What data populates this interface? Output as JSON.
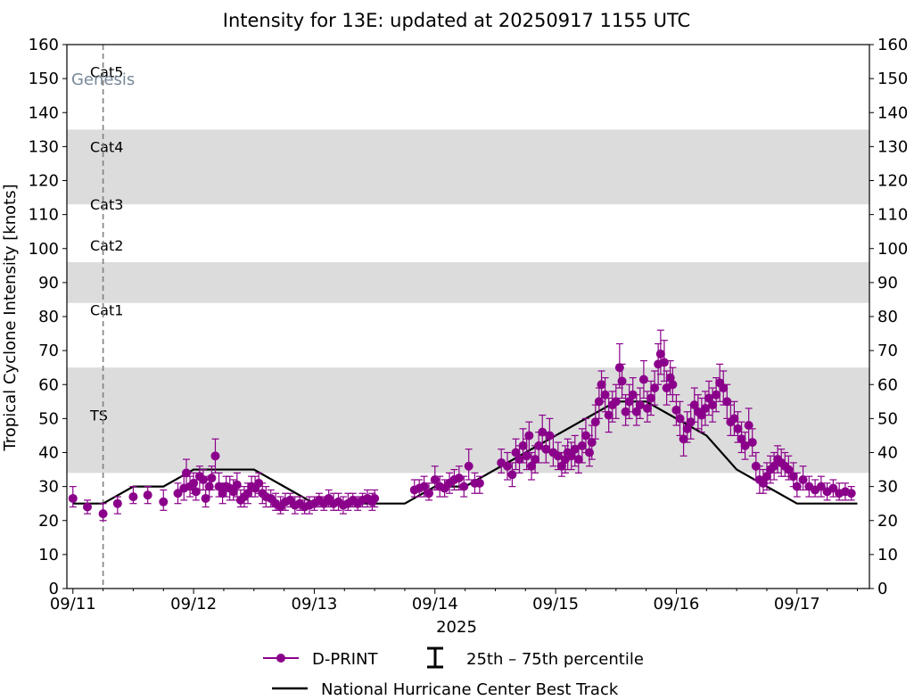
{
  "chart_data": {
    "type": "scatter",
    "title": "Intensity for 13E: updated at 20250917 1155 UTC",
    "xlabel": "2025",
    "ylabel": "Tropical Cyclone Intensity [knots]",
    "ylim": [
      0,
      160
    ],
    "xlim_days": [
      -0.05,
      6.6
    ],
    "x_unit": "days since 09/11 00 UTC",
    "x_ticks": [
      {
        "label": "09/11",
        "day": 0
      },
      {
        "label": "09/12",
        "day": 1
      },
      {
        "label": "09/13",
        "day": 2
      },
      {
        "label": "09/14",
        "day": 3
      },
      {
        "label": "09/15",
        "day": 4
      },
      {
        "label": "09/16",
        "day": 5
      },
      {
        "label": "09/17",
        "day": 6
      }
    ],
    "y_ticks": [
      0,
      10,
      20,
      30,
      40,
      50,
      60,
      70,
      80,
      90,
      100,
      110,
      120,
      130,
      140,
      150,
      160
    ],
    "category_bands": [
      {
        "label": "TS",
        "low": 34,
        "high": 65,
        "shaded": true
      },
      {
        "label": "Cat1",
        "low": 65,
        "high": 84,
        "shaded": false
      },
      {
        "label": "Cat2",
        "low": 84,
        "high": 96,
        "shaded": true
      },
      {
        "label": "Cat3",
        "low": 96,
        "high": 113,
        "shaded": false
      },
      {
        "label": "Cat4",
        "low": 113,
        "high": 135,
        "shaded": true
      },
      {
        "label": "Cat5",
        "low": 135,
        "high": 160,
        "shaded": false
      }
    ],
    "genesis": {
      "label": "Genesis",
      "day": 0.25
    },
    "best_track": {
      "name": "National Hurricane Center Best Track",
      "x": [
        0,
        0.25,
        0.5,
        0.75,
        1.0,
        1.25,
        1.5,
        1.75,
        2.0,
        2.25,
        2.5,
        2.75,
        3.0,
        3.25,
        3.5,
        3.75,
        4.0,
        4.25,
        4.5,
        4.75,
        5.0,
        5.25,
        5.5,
        5.75,
        6.0,
        6.25,
        6.5
      ],
      "y": [
        25,
        25,
        30,
        30,
        35,
        35,
        35,
        30,
        25,
        25,
        25,
        25,
        30,
        30,
        35,
        40,
        45,
        50,
        55,
        55,
        50,
        45,
        35,
        30,
        25,
        25,
        25
      ]
    },
    "dprint": {
      "name": "D-PRINT",
      "percentile_label": "25th–75th percentile",
      "points": [
        [
          0.0,
          26.5,
          24,
          30
        ],
        [
          0.12,
          24,
          22,
          26
        ],
        [
          0.25,
          22,
          20,
          25
        ],
        [
          0.37,
          25,
          22,
          27
        ],
        [
          0.5,
          27,
          25,
          30
        ],
        [
          0.62,
          27.5,
          25,
          30
        ],
        [
          0.75,
          25.5,
          23,
          29
        ],
        [
          0.87,
          28,
          25,
          31
        ],
        [
          0.92,
          29.5,
          26,
          33
        ],
        [
          0.94,
          34,
          30,
          38
        ],
        [
          0.97,
          30,
          27,
          33
        ],
        [
          1.0,
          31,
          28,
          34
        ],
        [
          1.02,
          28.5,
          26,
          32
        ],
        [
          1.05,
          33,
          29,
          36
        ],
        [
          1.08,
          32,
          29,
          35
        ],
        [
          1.1,
          26.5,
          24,
          29
        ],
        [
          1.13,
          30,
          27,
          33
        ],
        [
          1.15,
          32.5,
          29,
          36
        ],
        [
          1.18,
          39,
          34,
          44
        ],
        [
          1.21,
          30,
          27,
          34
        ],
        [
          1.24,
          28,
          25,
          31
        ],
        [
          1.27,
          30,
          27,
          33
        ],
        [
          1.3,
          29.5,
          26,
          33
        ],
        [
          1.33,
          28.5,
          26,
          32
        ],
        [
          1.36,
          30.5,
          27,
          34
        ],
        [
          1.39,
          26,
          24,
          29
        ],
        [
          1.42,
          27,
          24,
          30
        ],
        [
          1.45,
          28,
          25,
          31
        ],
        [
          1.48,
          30,
          27,
          33
        ],
        [
          1.51,
          29.5,
          27,
          33
        ],
        [
          1.54,
          31,
          28,
          34
        ],
        [
          1.57,
          28,
          25,
          31
        ],
        [
          1.6,
          27,
          24,
          30
        ],
        [
          1.64,
          26.5,
          24,
          29
        ],
        [
          1.68,
          25,
          23,
          28
        ],
        [
          1.72,
          24,
          22,
          27
        ],
        [
          1.76,
          25.5,
          23,
          28
        ],
        [
          1.8,
          26,
          24,
          28
        ],
        [
          1.84,
          24.5,
          22,
          27
        ],
        [
          1.88,
          25,
          23,
          27
        ],
        [
          1.92,
          24,
          22,
          26
        ],
        [
          1.96,
          24.5,
          22,
          27
        ],
        [
          2.0,
          25,
          23,
          27
        ],
        [
          2.04,
          26,
          24,
          28
        ],
        [
          2.08,
          25,
          23,
          27
        ],
        [
          2.12,
          26.5,
          24,
          29
        ],
        [
          2.16,
          25,
          23,
          28
        ],
        [
          2.2,
          25.5,
          23,
          28
        ],
        [
          2.24,
          24.5,
          22,
          27
        ],
        [
          2.28,
          25,
          23,
          28
        ],
        [
          2.32,
          26,
          24,
          28
        ],
        [
          2.36,
          25,
          23,
          27
        ],
        [
          2.4,
          26,
          24,
          28
        ],
        [
          2.44,
          26.5,
          24,
          29
        ],
        [
          2.48,
          25.5,
          23,
          28
        ],
        [
          2.5,
          26.5,
          24,
          29
        ],
        [
          2.83,
          29,
          27,
          32
        ],
        [
          2.87,
          29.5,
          27,
          32
        ],
        [
          2.91,
          30,
          27,
          33
        ],
        [
          2.95,
          28,
          26,
          31
        ],
        [
          3.0,
          32,
          29,
          36
        ],
        [
          3.04,
          30,
          27,
          33
        ],
        [
          3.08,
          29.5,
          27,
          32
        ],
        [
          3.12,
          31,
          28,
          34
        ],
        [
          3.16,
          32,
          29,
          35
        ],
        [
          3.2,
          32.5,
          29,
          36
        ],
        [
          3.24,
          30,
          27,
          33
        ],
        [
          3.28,
          36,
          32,
          41
        ],
        [
          3.33,
          31,
          28,
          34
        ],
        [
          3.37,
          31,
          28,
          33
        ],
        [
          3.55,
          37,
          34,
          41
        ],
        [
          3.6,
          36,
          32,
          40
        ],
        [
          3.64,
          33.5,
          30,
          37
        ],
        [
          3.67,
          40,
          35,
          44
        ],
        [
          3.7,
          38,
          34,
          42
        ],
        [
          3.73,
          42,
          37,
          47
        ],
        [
          3.76,
          39,
          35,
          44
        ],
        [
          3.78,
          45,
          40,
          49
        ],
        [
          3.8,
          36,
          32,
          40
        ],
        [
          3.83,
          38,
          34,
          42
        ],
        [
          3.86,
          42,
          37,
          46
        ],
        [
          3.89,
          46,
          41,
          51
        ],
        [
          3.92,
          41,
          37,
          46
        ],
        [
          3.95,
          45,
          40,
          50
        ],
        [
          3.98,
          40,
          36,
          45
        ],
        [
          4.02,
          39,
          35,
          43
        ],
        [
          4.05,
          36,
          33,
          40
        ],
        [
          4.08,
          38,
          34,
          42
        ],
        [
          4.1,
          40,
          35,
          44
        ],
        [
          4.13,
          39,
          35,
          43
        ],
        [
          4.16,
          41,
          36,
          45
        ],
        [
          4.19,
          38,
          34,
          42
        ],
        [
          4.22,
          42,
          37,
          47
        ],
        [
          4.25,
          45,
          40,
          50
        ],
        [
          4.28,
          40,
          36,
          45
        ],
        [
          4.3,
          43,
          38,
          48
        ],
        [
          4.33,
          49,
          44,
          54
        ],
        [
          4.36,
          55,
          50,
          59
        ],
        [
          4.38,
          60,
          55,
          64
        ],
        [
          4.41,
          57,
          52,
          62
        ],
        [
          4.44,
          51,
          46,
          56
        ],
        [
          4.47,
          54,
          49,
          58
        ],
        [
          4.5,
          55,
          50,
          60
        ],
        [
          4.53,
          65,
          59,
          72
        ],
        [
          4.55,
          61,
          56,
          66
        ],
        [
          4.58,
          52,
          48,
          57
        ],
        [
          4.61,
          55,
          50,
          60
        ],
        [
          4.64,
          57,
          52,
          62
        ],
        [
          4.67,
          52,
          48,
          57
        ],
        [
          4.7,
          54,
          50,
          59
        ],
        [
          4.73,
          61.5,
          56,
          67
        ],
        [
          4.76,
          53,
          49,
          58
        ],
        [
          4.79,
          56,
          51,
          61
        ],
        [
          4.82,
          59,
          54,
          64
        ],
        [
          4.85,
          66,
          60,
          72
        ],
        [
          4.87,
          69,
          63,
          76
        ],
        [
          4.9,
          66.5,
          61,
          73
        ],
        [
          4.92,
          59,
          54,
          64
        ],
        [
          4.95,
          62,
          57,
          67
        ],
        [
          4.97,
          60,
          55,
          65
        ],
        [
          5.0,
          52.5,
          48,
          57
        ],
        [
          5.03,
          50,
          45,
          55
        ],
        [
          5.06,
          44,
          39,
          49
        ],
        [
          5.09,
          47,
          43,
          52
        ],
        [
          5.12,
          49,
          44,
          54
        ],
        [
          5.15,
          54,
          49,
          59
        ],
        [
          5.18,
          52,
          47,
          57
        ],
        [
          5.21,
          51,
          46,
          56
        ],
        [
          5.24,
          53,
          48,
          58
        ],
        [
          5.27,
          56,
          51,
          61
        ],
        [
          5.3,
          54,
          49,
          59
        ],
        [
          5.33,
          57,
          52,
          62
        ],
        [
          5.36,
          60.5,
          55,
          66
        ],
        [
          5.39,
          59,
          54,
          64
        ],
        [
          5.42,
          55,
          50,
          60
        ],
        [
          5.45,
          49,
          45,
          54
        ],
        [
          5.48,
          50,
          45,
          55
        ],
        [
          5.51,
          47,
          43,
          52
        ],
        [
          5.54,
          44,
          40,
          49
        ],
        [
          5.57,
          42,
          38,
          46
        ],
        [
          5.6,
          48,
          43,
          53
        ],
        [
          5.63,
          43,
          39,
          47
        ],
        [
          5.66,
          36,
          32,
          40
        ],
        [
          5.69,
          32,
          28,
          36
        ],
        [
          5.72,
          31,
          28,
          35
        ],
        [
          5.75,
          33,
          29,
          37
        ],
        [
          5.78,
          35,
          31,
          39
        ],
        [
          5.81,
          36,
          32,
          40
        ],
        [
          5.84,
          38,
          34,
          42
        ],
        [
          5.87,
          37,
          33,
          41
        ],
        [
          5.9,
          36,
          33,
          40
        ],
        [
          5.93,
          35,
          32,
          39
        ],
        [
          5.97,
          33,
          30,
          37
        ],
        [
          6.0,
          30,
          27,
          34
        ],
        [
          6.05,
          32,
          29,
          36
        ],
        [
          6.1,
          30,
          27,
          33
        ],
        [
          6.15,
          29,
          27,
          32
        ],
        [
          6.2,
          30,
          27,
          33
        ],
        [
          6.25,
          28.5,
          26,
          31
        ],
        [
          6.3,
          29.5,
          27,
          32
        ],
        [
          6.35,
          28,
          26,
          31
        ],
        [
          6.4,
          28.5,
          26,
          31
        ],
        [
          6.45,
          28,
          26,
          30
        ]
      ]
    },
    "colors": {
      "dprint": "#8b008b",
      "best_track": "#000000",
      "band": "#dcdcdc",
      "genesis_line": "#808080",
      "genesis_text": "#778899"
    },
    "legend": {
      "dprint": "D-PRINT",
      "percentile": "25th – 75th percentile",
      "best_track": "National Hurricane Center Best Track",
      "placement": "bottom-center"
    }
  }
}
